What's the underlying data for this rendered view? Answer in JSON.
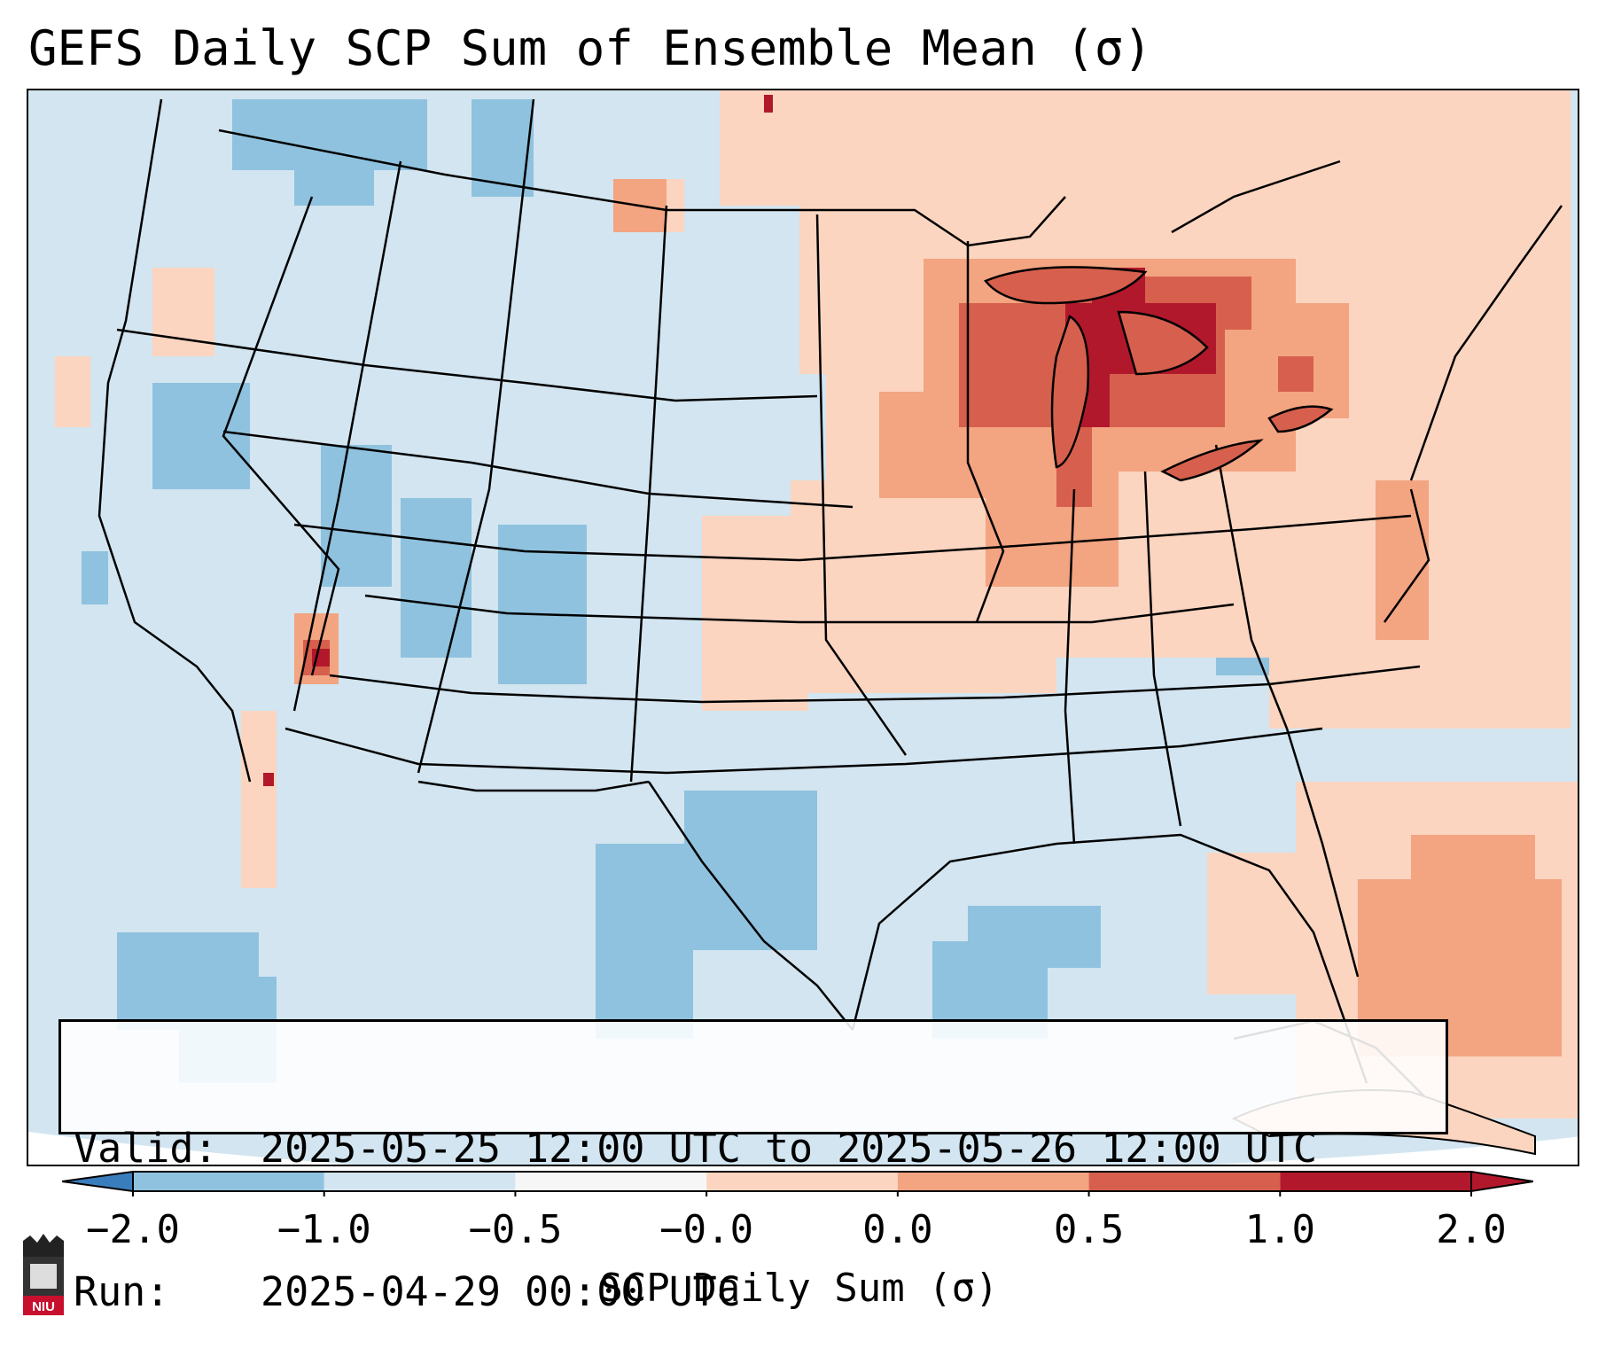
{
  "title": "GEFS Daily SCP Sum of Ensemble Mean (σ)",
  "info": {
    "valid_key": "Valid:",
    "valid_value": "2025-05-25 12:00 UTC to 2025-05-26 12:00 UTC",
    "run_key": "Run:",
    "run_value": "2025-04-29 00:00 UTC"
  },
  "colorbar": {
    "label": "SCP Daily Sum (σ)",
    "ticks": [
      "−2.0",
      "−1.0",
      "−0.5",
      "−0.0",
      "0.0",
      "0.5",
      "1.0",
      "2.0"
    ],
    "colors": [
      "#3a7dbc",
      "#8fc2de",
      "#d2e5f0",
      "#f6f6f6",
      "#fbd5c0",
      "#f3a481",
      "#d6604d",
      "#b2182b"
    ],
    "extend": "both"
  },
  "map": {
    "projection": "Lambert conformal (CONUS)",
    "background_color": "#d2e5f0",
    "region_colors": {
      "negative_strong": "#8fc2de",
      "positive_weak": "#fbd5c0",
      "positive_moderate": "#f3a481",
      "positive_strong": "#d6604d",
      "positive_max": "#b2182b"
    }
  },
  "logo": {
    "text": "NIU",
    "color": "#c8102e"
  }
}
